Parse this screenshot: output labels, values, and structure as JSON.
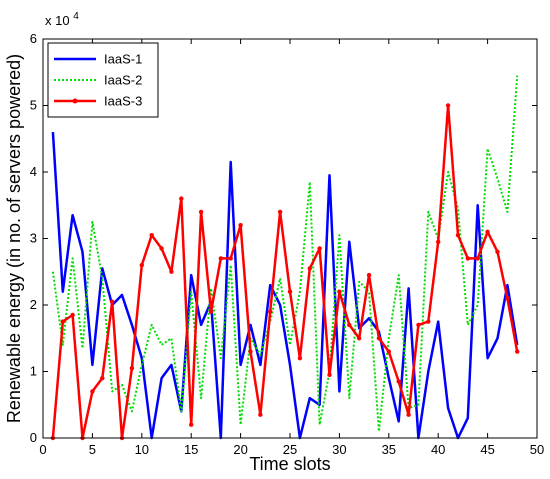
{
  "chart_data": {
    "type": "line",
    "title": "",
    "xlabel": "Time slots",
    "ylabel": "Renewable energy (in no. of servers powered)",
    "y_exponent_label": "x 10",
    "y_exponent_power": "4",
    "xlim": [
      0,
      50
    ],
    "ylim": [
      0,
      6
    ],
    "x_ticks": [
      0,
      5,
      10,
      15,
      20,
      25,
      30,
      35,
      40,
      45,
      50
    ],
    "y_ticks": [
      0,
      1,
      2,
      3,
      4,
      5,
      6
    ],
    "grid": false,
    "legend_position": "top-left",
    "x": [
      1,
      2,
      3,
      4,
      5,
      6,
      7,
      8,
      9,
      10,
      11,
      12,
      13,
      14,
      15,
      16,
      17,
      18,
      19,
      20,
      21,
      22,
      23,
      24,
      25,
      26,
      27,
      28,
      29,
      30,
      31,
      32,
      33,
      34,
      35,
      36,
      37,
      38,
      39,
      40,
      41,
      42,
      43,
      44,
      45,
      46,
      47,
      48
    ],
    "series": [
      {
        "name": "IaaS-1",
        "color": "#0000ff",
        "style": "solid",
        "marker": "none",
        "values": [
          4.6,
          2.2,
          3.35,
          2.8,
          1.1,
          2.55,
          2.0,
          2.15,
          1.7,
          1.2,
          0.0,
          0.9,
          1.1,
          0.4,
          2.45,
          1.7,
          2.05,
          0.0,
          4.15,
          1.1,
          1.7,
          1.1,
          2.3,
          2.0,
          1.1,
          0.0,
          0.6,
          0.5,
          3.95,
          0.7,
          2.95,
          1.65,
          1.8,
          1.6,
          0.9,
          0.25,
          2.25,
          0.0,
          1.0,
          1.75,
          0.45,
          0.0,
          0.3,
          3.5,
          1.2,
          1.5,
          2.3,
          1.4
        ]
      },
      {
        "name": "IaaS-2",
        "color": "#00dd00",
        "style": "dotted",
        "marker": "none",
        "values": [
          2.5,
          1.4,
          2.7,
          1.35,
          3.25,
          2.4,
          0.7,
          0.8,
          0.4,
          1.1,
          1.7,
          1.4,
          1.5,
          0.4,
          2.2,
          0.6,
          2.25,
          1.2,
          2.6,
          0.2,
          1.5,
          1.25,
          1.75,
          2.4,
          1.4,
          2.2,
          3.85,
          0.2,
          1.0,
          3.05,
          0.6,
          2.35,
          2.2,
          0.1,
          1.5,
          2.45,
          0.45,
          0.5,
          3.4,
          3.0,
          4.0,
          3.45,
          1.7,
          2.0,
          4.35,
          3.9,
          3.4,
          5.45
        ]
      },
      {
        "name": "IaaS-3",
        "color": "#ff0000",
        "style": "solid",
        "marker": "dot",
        "values": [
          0.0,
          1.75,
          1.85,
          0.0,
          0.7,
          0.9,
          2.05,
          0.0,
          1.05,
          2.6,
          3.05,
          2.85,
          2.5,
          3.6,
          0.2,
          3.4,
          1.9,
          2.7,
          2.7,
          3.2,
          1.3,
          0.35,
          1.9,
          3.4,
          2.2,
          1.2,
          2.55,
          2.85,
          0.95,
          2.2,
          1.7,
          1.5,
          2.45,
          1.5,
          1.3,
          0.85,
          0.35,
          1.7,
          1.75,
          2.95,
          5.0,
          3.05,
          2.7,
          2.7,
          3.1,
          2.8,
          2.1,
          1.3
        ]
      }
    ]
  }
}
